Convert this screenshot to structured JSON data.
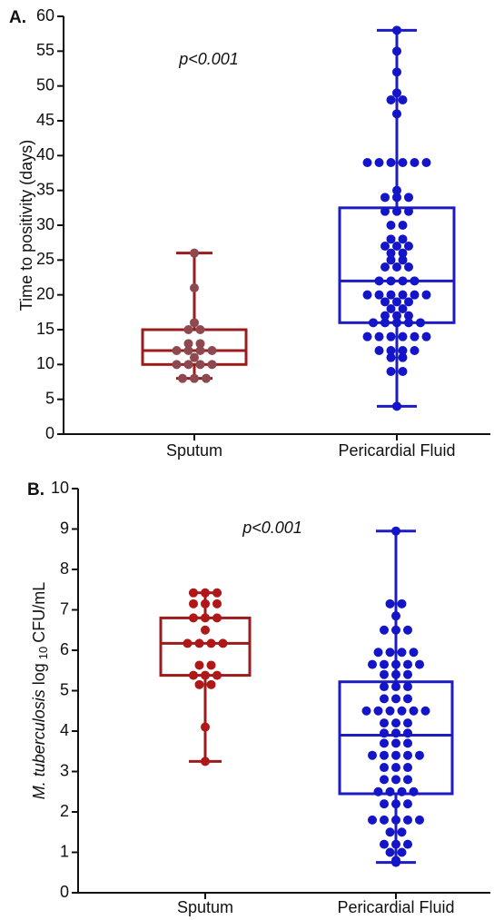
{
  "chart_data": [
    {
      "type": "box",
      "panel": "A.",
      "annotation": "p<0.001",
      "ylabel": "Time to positivity (days)",
      "ylim": [
        0,
        60
      ],
      "yticks": [
        0,
        5,
        10,
        15,
        20,
        25,
        30,
        35,
        40,
        45,
        50,
        55,
        60
      ],
      "boxes": [
        {
          "category": "Sputum",
          "color": "#9b1c1c",
          "point_color": "#8c4a50",
          "min": 8,
          "q1": 10,
          "median": 12,
          "q3": 15,
          "max": 26,
          "points": [
            26,
            21,
            16,
            15,
            15,
            13,
            13,
            12,
            12,
            12,
            12,
            11,
            10,
            10,
            10,
            10,
            8,
            8,
            8
          ]
        },
        {
          "category": "Pericardial Fluid",
          "color": "#1c1cc0",
          "point_color": "#1414c8",
          "min": 4,
          "q1": 16,
          "median": 22,
          "q3": 32.5,
          "max": 58,
          "points": [
            58,
            55,
            52,
            49,
            48,
            48,
            46,
            39,
            39,
            39,
            39,
            39,
            39,
            35,
            34,
            34,
            34,
            32,
            32,
            32,
            30,
            30,
            28,
            28,
            27,
            27,
            27,
            26,
            26,
            25,
            25,
            24,
            24,
            24,
            22,
            22,
            22,
            22,
            20,
            20,
            20,
            20,
            20,
            20,
            19,
            19,
            19,
            18,
            18,
            17,
            17,
            17,
            16,
            16,
            16,
            16,
            16,
            14,
            14,
            14,
            14,
            14,
            14,
            12,
            12,
            12,
            12,
            11,
            11,
            9,
            9,
            4
          ]
        }
      ]
    },
    {
      "type": "box",
      "panel": "B.",
      "annotation": "p<0.001",
      "ylabel_italic": "M. tuberculosis",
      "ylabel": "log",
      "ylabel_sub": "10",
      "ylabel_unit": "CFU/mL",
      "ylim": [
        0,
        10
      ],
      "yticks": [
        0,
        1,
        2,
        3,
        4,
        5,
        6,
        7,
        8,
        9,
        10
      ],
      "boxes": [
        {
          "category": "Sputum",
          "color": "#9b1c1c",
          "point_color": "#b01818",
          "min": 3.25,
          "q1": 5.38,
          "median": 6.17,
          "q3": 6.8,
          "max": 7.42,
          "points": [
            7.42,
            7.42,
            7.42,
            7.15,
            7.15,
            7.15,
            6.8,
            6.8,
            6.8,
            6.5,
            6.17,
            6.17,
            6.17,
            6.17,
            5.63,
            5.63,
            5.38,
            5.38,
            5.38,
            5.15,
            5.15,
            4.1,
            3.25
          ]
        },
        {
          "category": "Pericardial Fluid",
          "color": "#1c1cc0",
          "point_color": "#1414c8",
          "min": 0.75,
          "q1": 2.45,
          "median": 3.9,
          "q3": 5.22,
          "max": 8.95,
          "points": [
            8.95,
            7.15,
            7.15,
            6.85,
            6.5,
            6.5,
            6.5,
            5.95,
            5.95,
            5.95,
            5.95,
            5.65,
            5.65,
            5.65,
            5.65,
            5.65,
            5.4,
            5.4,
            5.4,
            5.1,
            5.1,
            5.1,
            4.8,
            4.8,
            4.8,
            4.5,
            4.5,
            4.5,
            4.5,
            4.5,
            4.5,
            4.2,
            4.2,
            4.2,
            3.95,
            3.95,
            3.95,
            3.7,
            3.7,
            3.7,
            3.4,
            3.4,
            3.4,
            3.4,
            3.4,
            3.1,
            3.1,
            3.1,
            2.8,
            2.8,
            2.8,
            2.5,
            2.5,
            2.5,
            2.5,
            2.2,
            2.2,
            2.2,
            1.8,
            1.8,
            1.8,
            1.8,
            1.8,
            1.5,
            1.5,
            1.2,
            1.2,
            1.2,
            1.0,
            1.0,
            0.8,
            0.75
          ]
        }
      ]
    }
  ]
}
